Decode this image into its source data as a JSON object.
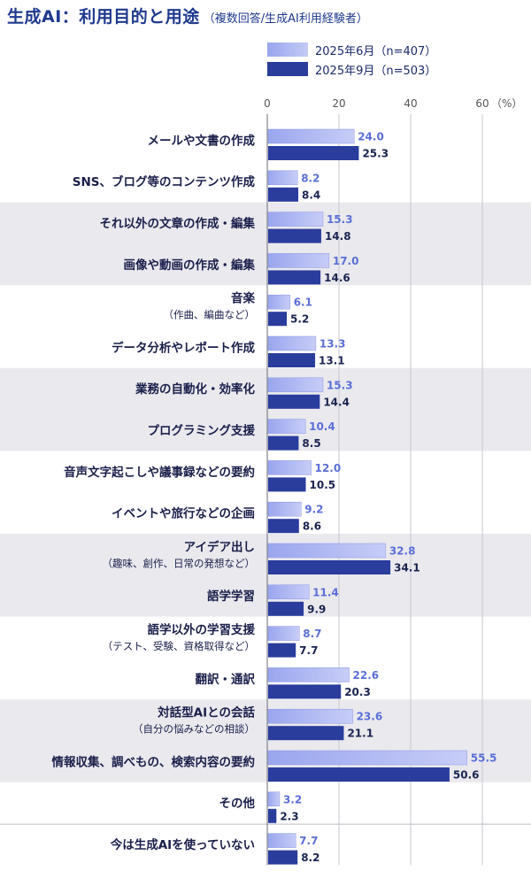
{
  "title": "生成AI：利用目的と用途",
  "subtitle": "（複数回答/生成AI利用経験者）",
  "colors": {
    "series1": "#9aa6ee",
    "series2": "#2a3c9c",
    "label1": "#5b6fd6",
    "label2": "#1a2450",
    "band": "#e9e9ee",
    "category": "#1a1f4a"
  },
  "chart_data": {
    "type": "bar",
    "orientation": "horizontal",
    "unit": "（%）",
    "xlim": [
      0,
      60
    ],
    "xticks": [
      "0",
      "20",
      "40",
      "60"
    ],
    "categories": [
      {
        "main": "メールや文書の作成",
        "sub": ""
      },
      {
        "main": "SNS、ブログ等のコンテンツ作成",
        "sub": ""
      },
      {
        "main": "それ以外の文章の作成・編集",
        "sub": ""
      },
      {
        "main": "画像や動画の作成・編集",
        "sub": ""
      },
      {
        "main": "音楽",
        "sub": "（作曲、編曲など）"
      },
      {
        "main": "データ分析やレポート作成",
        "sub": ""
      },
      {
        "main": "業務の自動化・効率化",
        "sub": ""
      },
      {
        "main": "プログラミング支援",
        "sub": ""
      },
      {
        "main": "音声文字起こしや議事録などの要約",
        "sub": ""
      },
      {
        "main": "イベントや旅行などの企画",
        "sub": ""
      },
      {
        "main": "アイデア出し",
        "sub": "（趣味、創作、日常の発想など）"
      },
      {
        "main": "語学学習",
        "sub": ""
      },
      {
        "main": "語学以外の学習支援",
        "sub": "（テスト、受験、資格取得など）"
      },
      {
        "main": "翻訳・通訳",
        "sub": ""
      },
      {
        "main": "対話型AIとの会話",
        "sub": "（自分の悩みなどの相談）"
      },
      {
        "main": "情報収集、調べもの、検索内容の要約",
        "sub": ""
      },
      {
        "main": "その他",
        "sub": ""
      },
      {
        "main": "今は生成AIを使っていない",
        "sub": ""
      }
    ],
    "series": [
      {
        "name": "2025年6月（n=407）",
        "values": [
          24.0,
          8.2,
          15.3,
          17.0,
          6.1,
          13.3,
          15.3,
          10.4,
          12.0,
          9.2,
          32.8,
          11.4,
          8.7,
          22.6,
          23.6,
          55.5,
          3.2,
          7.7
        ]
      },
      {
        "name": "2025年9月（n=503）",
        "values": [
          25.3,
          8.4,
          14.8,
          14.6,
          5.2,
          13.1,
          14.4,
          8.5,
          10.5,
          8.6,
          34.1,
          9.9,
          7.7,
          20.3,
          21.1,
          50.6,
          2.3,
          8.2
        ]
      }
    ],
    "grid": true,
    "legend_position": "top"
  }
}
